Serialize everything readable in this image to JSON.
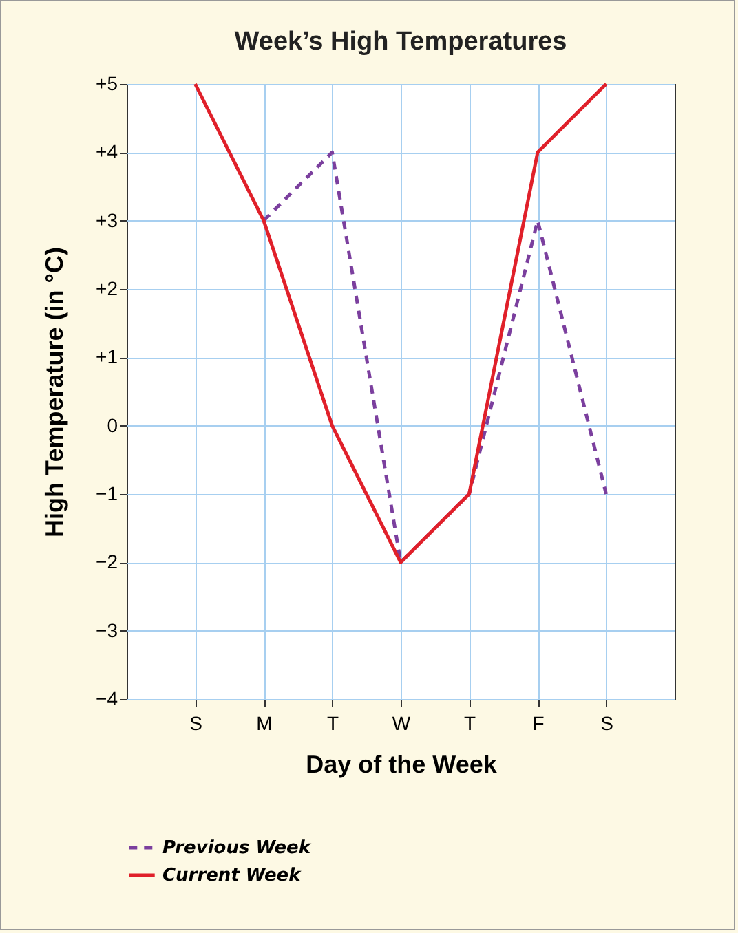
{
  "chart_data": {
    "type": "line",
    "title": "Week’s High Temperatures",
    "xlabel": "Day of the Week",
    "ylabel": "High Temperature (in °C)",
    "categories": [
      "S",
      "M",
      "T",
      "W",
      "T",
      "F",
      "S"
    ],
    "series": [
      {
        "name": "Previous Week",
        "color": "#7b3f9e",
        "line_style": "dashed",
        "values": [
          null,
          3,
          4,
          -2,
          -1,
          3,
          -1
        ]
      },
      {
        "name": "Current Week",
        "color": "#e0202a",
        "line_style": "solid",
        "values": [
          5,
          3,
          0,
          -2,
          -1,
          4,
          5
        ]
      }
    ],
    "ylim": [
      -4,
      5
    ],
    "yticks": [
      {
        "value": -4,
        "label": "−4"
      },
      {
        "value": -3,
        "label": "−3"
      },
      {
        "value": -2,
        "label": "−2"
      },
      {
        "value": -1,
        "label": "−1"
      },
      0,
      {
        "value": 1,
        "label": "+1"
      },
      {
        "value": 2,
        "label": "+2"
      },
      {
        "value": 3,
        "label": "+3"
      },
      {
        "value": 4,
        "label": "+4"
      },
      {
        "value": 5,
        "label": "+5"
      }
    ],
    "grid": true,
    "legend": "bottom",
    "marker": "none"
  }
}
